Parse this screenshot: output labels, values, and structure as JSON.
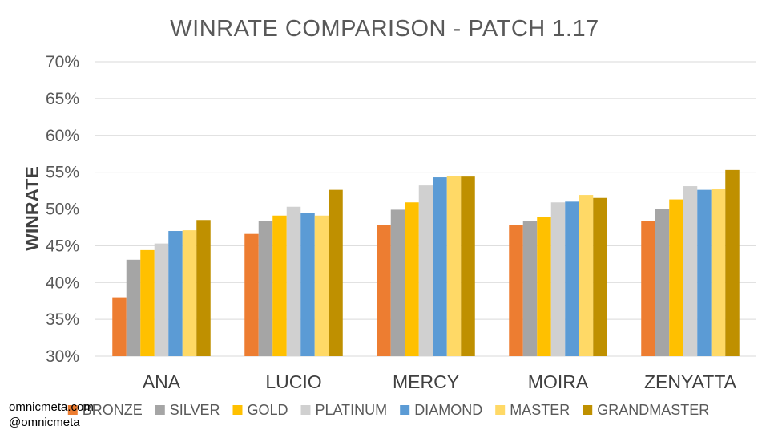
{
  "chart_data": {
    "type": "bar",
    "title": "WINRATE COMPARISON - PATCH 1.17",
    "ylabel": "WINRATE",
    "xlabel": "",
    "ylim": [
      30,
      70
    ],
    "yticks": [
      "30%",
      "35%",
      "40%",
      "45%",
      "50%",
      "55%",
      "60%",
      "65%",
      "70%"
    ],
    "ytick_values": [
      30,
      35,
      40,
      45,
      50,
      55,
      60,
      65,
      70
    ],
    "grid": true,
    "legend_position": "bottom",
    "categories": [
      "ANA",
      "LUCIO",
      "MERCY",
      "MOIRA",
      "ZENYATTA"
    ],
    "series": [
      {
        "name": "BRONZE",
        "color": "#ED7D31",
        "values": [
          38.0,
          46.6,
          47.8,
          47.8,
          48.4
        ]
      },
      {
        "name": "SILVER",
        "color": "#A5A5A5",
        "values": [
          43.1,
          48.4,
          49.9,
          48.4,
          50.0
        ]
      },
      {
        "name": "GOLD",
        "color": "#FFC000",
        "values": [
          44.4,
          49.1,
          50.9,
          48.9,
          51.3
        ]
      },
      {
        "name": "PLATINUM",
        "color": "#D0D0D0",
        "values": [
          45.3,
          50.3,
          53.2,
          50.9,
          53.1
        ]
      },
      {
        "name": "DIAMOND",
        "color": "#5B9BD5",
        "values": [
          47.0,
          49.5,
          54.3,
          51.0,
          52.6
        ]
      },
      {
        "name": "MASTER",
        "color": "#FFD966",
        "values": [
          47.1,
          49.1,
          54.5,
          51.9,
          52.7
        ]
      },
      {
        "name": "GRANDMASTER",
        "color": "#BF9000",
        "values": [
          48.5,
          52.6,
          54.4,
          51.5,
          55.3
        ]
      }
    ]
  },
  "credits": {
    "line1": "omnicmeta.com",
    "line2": "@omnicmeta"
  }
}
